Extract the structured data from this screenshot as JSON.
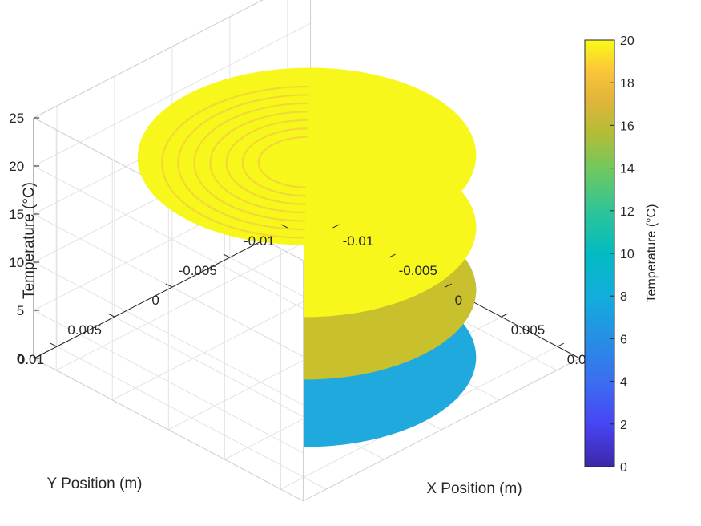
{
  "chart_data": {
    "type": "surface3d",
    "xlabel": "X Position (m)",
    "ylabel": "Y Position (m)",
    "zlabel": "Temperature (°C)",
    "colorbar_label": "Temperature (°C)",
    "colormap": "parula",
    "grid": true,
    "xlim": [
      -0.012,
      0.012
    ],
    "ylim": [
      -0.012,
      0.012
    ],
    "zlim": [
      0,
      25
    ],
    "clim": [
      0,
      20
    ],
    "x_ticks": [
      "-0.01",
      "-0.005",
      "0",
      "0.005",
      "0.01"
    ],
    "y_ticks": [
      "-0.01",
      "-0.005",
      "0",
      "0.005",
      "0.01"
    ],
    "z_ticks": [
      "0",
      "5",
      "10",
      "15",
      "20",
      "25"
    ],
    "colorbar_ticks": [
      "0",
      "2",
      "4",
      "6",
      "8",
      "10",
      "12",
      "14",
      "16",
      "18",
      "20"
    ],
    "cylinder": {
      "radius": 0.0105,
      "layers": [
        {
          "z_bottom": 0,
          "z_top": 7,
          "temperature": 7.5,
          "color": "#1fa9dc"
        },
        {
          "z_bottom": 7,
          "z_top": 13.5,
          "temperature": 15,
          "color": "#c9c02d"
        },
        {
          "z_bottom": 13.5,
          "z_top": 21,
          "temperature": 20,
          "color": "#f7f71b"
        }
      ],
      "top_ring_radii": [
        0.009,
        0.008,
        0.007,
        0.006,
        0.005,
        0.004,
        0.003
      ],
      "top_ring_color": "#f2d23a"
    }
  }
}
